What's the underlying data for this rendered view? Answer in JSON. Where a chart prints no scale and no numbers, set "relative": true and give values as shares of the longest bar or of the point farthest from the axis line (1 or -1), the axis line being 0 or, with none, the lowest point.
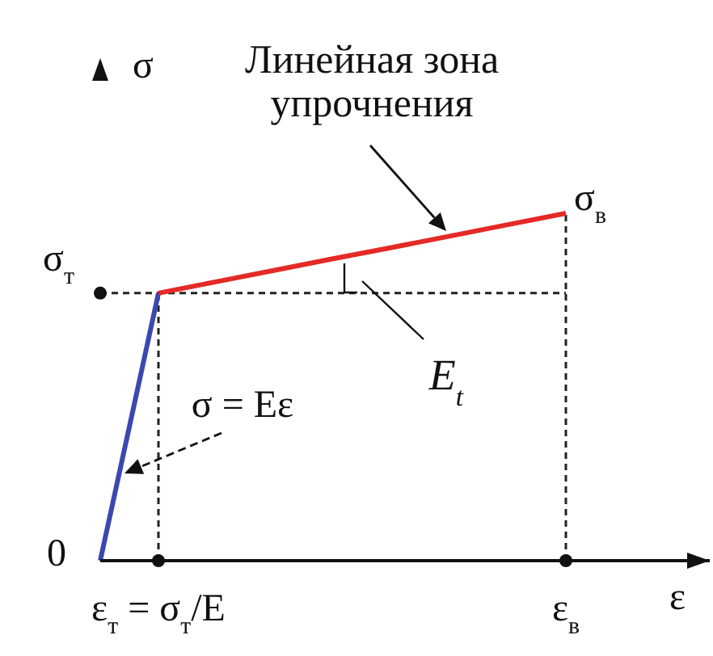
{
  "chart_data": {
    "type": "line",
    "relative": true,
    "xlabel": "ε",
    "ylabel": "σ",
    "categories": [
      null,
      "ε$_{т}$ = σ$_{т}$/E",
      null,
      null,
      null,
      null,
      null,
      null,
      "ε$_{в}$",
      null,
      null
    ],
    "series": [
      {
        "color": "#3b48b0",
        "values": [
          0,
          0.77,
          null,
          null,
          null,
          null,
          null,
          null,
          null,
          null,
          null
        ]
      },
      {
        "color": "#e42a26",
        "values": [
          null,
          0.77,
          0.803,
          0.836,
          0.869,
          0.901,
          0.934,
          0.967,
          1,
          null,
          null
        ]
      }
    ],
    "ref_lines": [
      {
        "axis": "x",
        "value": "ε$_{т}$ = σ$_{т}$/E",
        "line_style": "dashed"
      },
      {
        "axis": "x",
        "value": "ε$_{в}$",
        "line_style": "dashed"
      },
      {
        "axis": "y",
        "value": 0.77,
        "label": "σ$_{т}$",
        "line_style": "dashed"
      }
    ],
    "annotations": [
      "0",
      {
        "text": "σ$_{в}$",
        "x": "ε$_{в}$",
        "y": 1
      },
      "Линейная зона упрочнения",
      "E$_{t}$",
      "σ = Eε"
    ],
    "marker": "none",
    "line_style": "solid"
  }
}
